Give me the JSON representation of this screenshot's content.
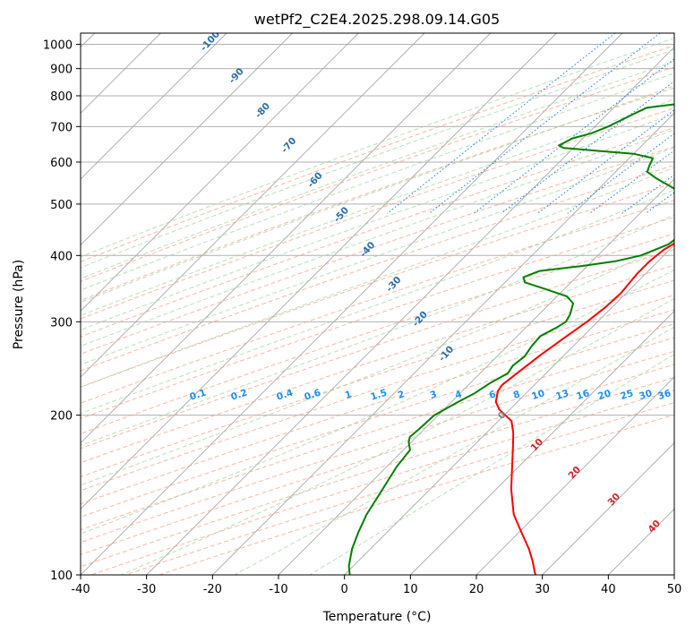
{
  "chart_data": {
    "type": "line",
    "title": "wetPf2_C2E4.2025.298.09.14.G05",
    "xlabel": "Temperature (°C)",
    "ylabel": "Pressure (hPa)",
    "xlim": [
      -40,
      50
    ],
    "ylim": [
      1050,
      100
    ],
    "y_scale": "log",
    "grid": true,
    "x_ticks": [
      "-40",
      "-30",
      "-20",
      "-10",
      "0",
      "10",
      "20",
      "30",
      "40",
      "50"
    ],
    "y_ticks": [
      "100",
      "200",
      "300",
      "400",
      "500",
      "600",
      "700",
      "800",
      "900",
      "1000"
    ],
    "dry_adiabat_labels": [
      "-100",
      "-90",
      "-80",
      "-70",
      "-60",
      "-50",
      "-40",
      "-30",
      "-20",
      "-10"
    ],
    "mixing_ratio_labels": [
      "0.1",
      "0.2",
      "0.4",
      "0.6",
      "1",
      "1.5",
      "2",
      "3",
      "4",
      "6",
      "8",
      "10",
      "13",
      "16",
      "20",
      "25",
      "30",
      "36"
    ],
    "moist_adiabat_labels": [
      "0",
      "10",
      "20",
      "30",
      "40"
    ],
    "series": [
      {
        "color": "#ff0000",
        "points": [
          [
            5.2,
            880
          ],
          [
            4.3,
            860
          ],
          [
            3.5,
            840
          ],
          [
            3.4,
            820
          ],
          [
            3.4,
            800
          ],
          [
            4.0,
            780
          ],
          [
            5.0,
            760
          ],
          [
            5.6,
            740
          ],
          [
            5.6,
            700
          ],
          [
            5.5,
            660
          ],
          [
            5.2,
            620
          ],
          [
            4.6,
            580
          ],
          [
            4.0,
            540
          ],
          [
            3.2,
            500
          ],
          [
            2.2,
            470
          ],
          [
            0.8,
            440
          ],
          [
            -0.9,
            410
          ],
          [
            -1.3,
            390
          ],
          [
            -1.3,
            370
          ],
          [
            -0.8,
            340
          ],
          [
            -1.0,
            320
          ],
          [
            -1.6,
            300
          ],
          [
            -2.6,
            280
          ],
          [
            -3.6,
            260
          ],
          [
            -4.4,
            240
          ],
          [
            -4.9,
            228
          ],
          [
            -4.6,
            222
          ],
          [
            -3.3,
            212
          ],
          [
            -1.6,
            205
          ],
          [
            2.0,
            195
          ],
          [
            4.1,
            185
          ],
          [
            6.0,
            175
          ],
          [
            9.0,
            160
          ],
          [
            12.3,
            145
          ],
          [
            16.5,
            130
          ],
          [
            20.5,
            120
          ],
          [
            24.0,
            112
          ],
          [
            26.5,
            106
          ],
          [
            28.5,
            101
          ],
          [
            29.0,
            100
          ]
        ]
      },
      {
        "color": "#008000",
        "points": [
          [
            1.0,
            880
          ],
          [
            0.3,
            860
          ],
          [
            -1.0,
            840
          ],
          [
            -3.2,
            820
          ],
          [
            -4.8,
            800
          ],
          [
            -11.0,
            790
          ],
          [
            -20.0,
            775
          ],
          [
            -25.0,
            760
          ],
          [
            -26.0,
            740
          ],
          [
            -27.0,
            720
          ],
          [
            -28.0,
            700
          ],
          [
            -29.5,
            680
          ],
          [
            -31.6,
            665
          ],
          [
            -32.6,
            645
          ],
          [
            -31.5,
            638
          ],
          [
            -26.0,
            630
          ],
          [
            -20.0,
            622
          ],
          [
            -16.4,
            610
          ],
          [
            -15.8,
            590
          ],
          [
            -15.2,
            575
          ],
          [
            -13.0,
            560
          ],
          [
            -8.6,
            535
          ],
          [
            -5.0,
            510
          ],
          [
            -3.5,
            480
          ],
          [
            -1.2,
            455
          ],
          [
            -0.6,
            435
          ],
          [
            -1.0,
            420
          ],
          [
            -3.5,
            400
          ],
          [
            -6.5,
            390
          ],
          [
            -11.0,
            382
          ],
          [
            -16.5,
            374
          ],
          [
            -18.0,
            364
          ],
          [
            -17.0,
            356
          ],
          [
            -13.0,
            346
          ],
          [
            -8.5,
            335
          ],
          [
            -6.5,
            325
          ],
          [
            -5.3,
            310
          ],
          [
            -4.8,
            300
          ],
          [
            -5.4,
            292
          ],
          [
            -6.5,
            282
          ],
          [
            -6.3,
            270
          ],
          [
            -5.8,
            258
          ],
          [
            -6.2,
            248
          ],
          [
            -5.8,
            240
          ],
          [
            -7.0,
            230
          ],
          [
            -7.8,
            220
          ],
          [
            -9.0,
            212
          ],
          [
            -10.6,
            200
          ],
          [
            -10.8,
            188
          ],
          [
            -11.0,
            182
          ],
          [
            -10.4,
            178
          ],
          [
            -9.0,
            172
          ],
          [
            -8.5,
            160
          ],
          [
            -7.2,
            145
          ],
          [
            -5.8,
            130
          ],
          [
            -4.3,
            120
          ],
          [
            -2.8,
            112
          ],
          [
            -0.7,
            104
          ],
          [
            0.8,
            100
          ]
        ]
      }
    ]
  }
}
